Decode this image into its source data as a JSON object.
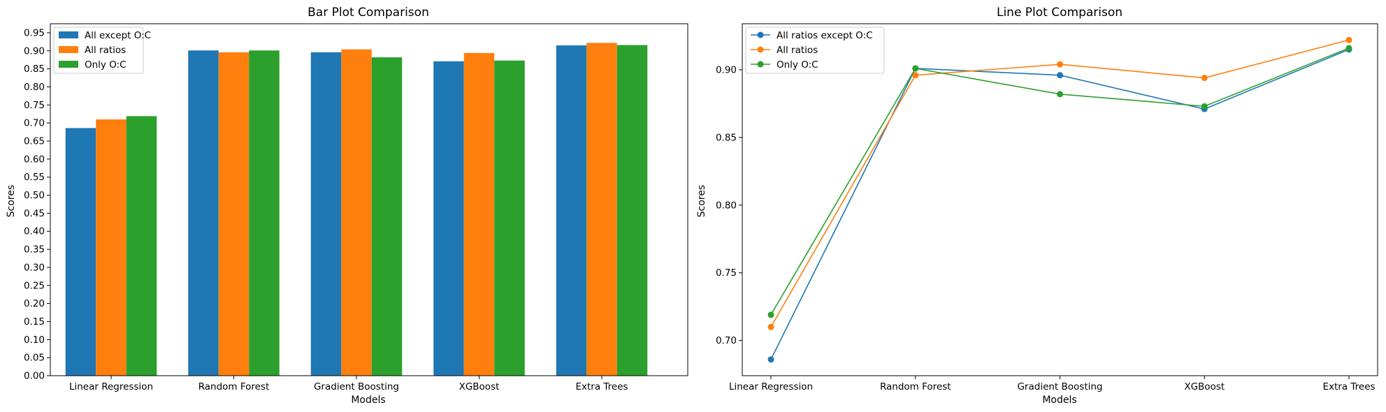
{
  "chart_data": [
    {
      "type": "bar",
      "title": "Bar Plot Comparison",
      "xlabel": "Models",
      "ylabel": "Scores",
      "categories": [
        "Linear Regression",
        "Random Forest",
        "Gradient Boosting",
        "XGBoost",
        "Extra Trees"
      ],
      "series": [
        {
          "name": "All except O:C",
          "color": "#1f77b4",
          "values": [
            0.686,
            0.901,
            0.896,
            0.871,
            0.915
          ]
        },
        {
          "name": "All ratios",
          "color": "#ff7f0e",
          "values": [
            0.71,
            0.896,
            0.904,
            0.894,
            0.922
          ]
        },
        {
          "name": "Only O:C",
          "color": "#2ca02c",
          "values": [
            0.719,
            0.901,
            0.882,
            0.873,
            0.916
          ]
        }
      ],
      "ylim": [
        0,
        0.975
      ],
      "yticks": [
        "0.00",
        "0.05",
        "0.10",
        "0.15",
        "0.20",
        "0.25",
        "0.30",
        "0.35",
        "0.40",
        "0.45",
        "0.50",
        "0.55",
        "0.60",
        "0.65",
        "0.70",
        "0.75",
        "0.80",
        "0.85",
        "0.90",
        "0.95"
      ],
      "legend": "top-left",
      "grid": false
    },
    {
      "type": "line",
      "title": "Line Plot Comparison",
      "xlabel": "Models",
      "ylabel": "Scores",
      "categories": [
        "Linear Regression",
        "Random Forest",
        "Gradient Boosting",
        "XGBoost",
        "Extra Trees"
      ],
      "series": [
        {
          "name": "All ratios except O:C",
          "color": "#1f77b4",
          "values": [
            0.686,
            0.901,
            0.896,
            0.871,
            0.915
          ]
        },
        {
          "name": "All ratios",
          "color": "#ff7f0e",
          "values": [
            0.71,
            0.896,
            0.904,
            0.894,
            0.922
          ]
        },
        {
          "name": "Only O:C",
          "color": "#2ca02c",
          "values": [
            0.719,
            0.901,
            0.882,
            0.873,
            0.916
          ]
        }
      ],
      "ylim": [
        0.674,
        0.934
      ],
      "yticks": [
        "0.70",
        "0.75",
        "0.80",
        "0.85",
        "0.90"
      ],
      "legend": "top-left",
      "grid": false
    }
  ]
}
